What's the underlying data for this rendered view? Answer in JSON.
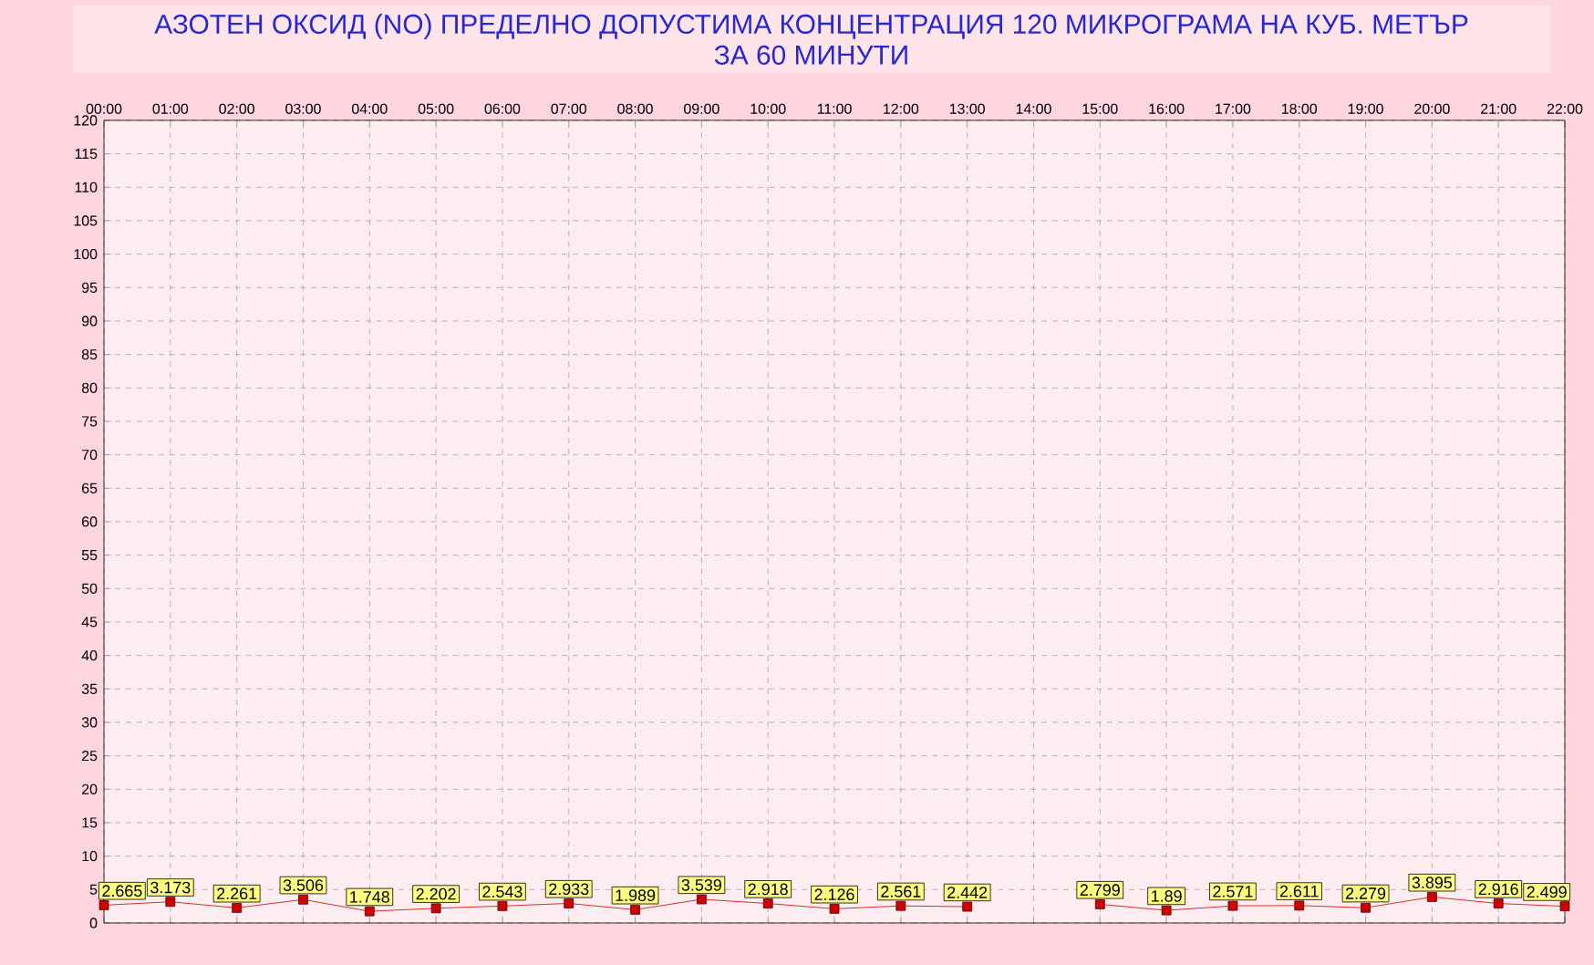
{
  "chart_data": {
    "type": "line",
    "title": "АЗОТЕН ОКСИД   (NO)     ПРЕДЕЛНО ДОПУСТИМА КОНЦЕНТРАЦИЯ 120 МИКРОГРАМА  НА КУБ. МЕТЪР",
    "subtitle": "ЗА 60 МИНУТИ",
    "categories": [
      "00:00",
      "01:00",
      "02:00",
      "03:00",
      "04:00",
      "05:00",
      "06:00",
      "07:00",
      "08:00",
      "09:00",
      "10:00",
      "11:00",
      "12:00",
      "13:00",
      "14:00",
      "15:00",
      "16:00",
      "17:00",
      "18:00",
      "19:00",
      "20:00",
      "21:00",
      "22:00"
    ],
    "series": [
      {
        "color": "#cc0000",
        "values": [
          2.665,
          3.173,
          2.261,
          3.506,
          1.748,
          2.202,
          2.543,
          2.933,
          1.989,
          3.539,
          2.918,
          2.126,
          2.561,
          2.442,
          null,
          2.799,
          1.89,
          2.571,
          2.611,
          2.279,
          3.895,
          2.916,
          2.499
        ]
      }
    ],
    "ylim": [
      0,
      120
    ],
    "yticks": [
      0,
      5,
      10,
      15,
      20,
      25,
      30,
      35,
      40,
      45,
      50,
      55,
      60,
      65,
      70,
      75,
      80,
      85,
      90,
      95,
      100,
      105,
      110,
      115,
      120
    ],
    "grid": true,
    "marker": "square",
    "line_style": "solid",
    "data_labels": true
  }
}
